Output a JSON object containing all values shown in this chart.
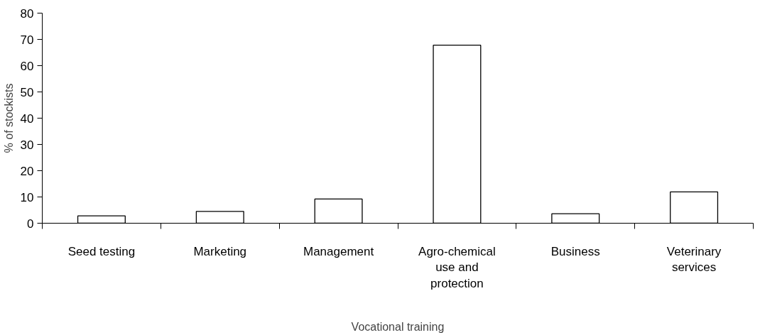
{
  "chart_data": {
    "type": "bar",
    "xlabel": "Vocational training",
    "ylabel": "% of stockists",
    "categories": [
      "Seed testing",
      "Marketing",
      "Management",
      "Agro-chemical use and protection",
      "Business",
      "Veterinary services"
    ],
    "values": [
      2.8,
      4.5,
      9.2,
      67.8,
      3.6,
      11.9
    ],
    "color": "#ffffff",
    "ylim": [
      0,
      80
    ],
    "yticks": [
      0,
      10,
      20,
      30,
      40,
      50,
      60,
      70,
      80
    ],
    "grid": false
  }
}
